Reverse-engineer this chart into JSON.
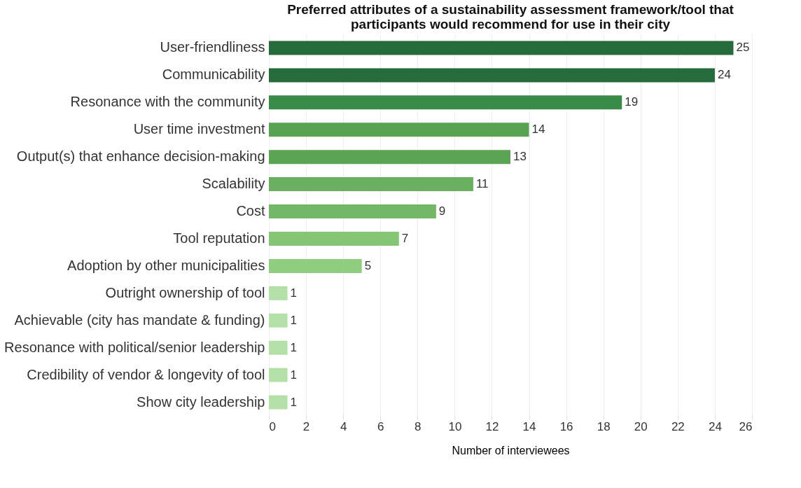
{
  "chart_data": {
    "type": "bar",
    "orientation": "horizontal",
    "title": "Preferred attributes of a sustainability assessment framework/tool that\nparticipants would recommend for use in their city",
    "xlabel": "Number of interviewees",
    "categories": [
      "User-friendliness",
      "Communicability",
      "Resonance with the community",
      "User time investment",
      "Output(s) that enhance decision-making",
      "Scalability",
      "Cost",
      "Tool reputation",
      "Adoption by other municipalities",
      "Outright ownership of tool",
      "Achievable (city has mandate & funding)",
      "Resonance with political/senior leadership",
      "Credibility of vendor & longevity of tool",
      "Show city leadership"
    ],
    "values": [
      25,
      24,
      19,
      14,
      13,
      11,
      9,
      7,
      5,
      1,
      1,
      1,
      1,
      1
    ],
    "colors": [
      "#256b3c",
      "#256b3c",
      "#388c48",
      "#58a352",
      "#5aa454",
      "#6ab15f",
      "#72b866",
      "#84c674",
      "#8fce7f",
      "#b3e0a6",
      "#b3e0a6",
      "#b3e0a6",
      "#b3e0a6",
      "#b3e0a6"
    ],
    "xlim": [
      0,
      26
    ],
    "xticks": [
      0,
      2,
      4,
      6,
      8,
      10,
      12,
      14,
      16,
      18,
      20,
      22,
      24,
      26
    ],
    "grid": "x",
    "data_labels": true
  }
}
